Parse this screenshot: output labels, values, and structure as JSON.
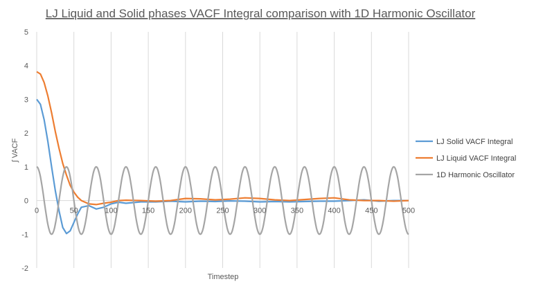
{
  "chart_data": {
    "type": "line",
    "title": "LJ Liquid and Solid phases VACF Integral comparison with 1D Harmonic Oscillator",
    "xlabel": "Timestep",
    "ylabel": "∫ VACF",
    "xlim": [
      0,
      500
    ],
    "ylim": [
      -2,
      5
    ],
    "x_ticks": [
      0,
      50,
      100,
      150,
      200,
      250,
      300,
      350,
      400,
      450,
      500
    ],
    "y_ticks": [
      -2,
      -1,
      0,
      1,
      2,
      3,
      4,
      5
    ],
    "grid": "vertical gridlines",
    "legend_position": "right",
    "series": [
      {
        "name": "LJ Solid VACF Integral",
        "color": "#5b9bd5",
        "x": [
          0,
          5,
          10,
          15,
          20,
          25,
          30,
          35,
          40,
          45,
          50,
          55,
          60,
          70,
          80,
          90,
          100,
          110,
          120,
          140,
          160,
          180,
          200,
          220,
          240,
          260,
          280,
          300,
          320,
          340,
          360,
          380,
          400,
          420,
          440,
          460,
          480,
          500
        ],
        "y": [
          3.0,
          2.85,
          2.4,
          1.75,
          1.0,
          0.3,
          -0.3,
          -0.8,
          -0.98,
          -0.9,
          -0.65,
          -0.4,
          -0.2,
          -0.15,
          -0.25,
          -0.2,
          -0.1,
          -0.05,
          -0.08,
          -0.04,
          -0.04,
          -0.02,
          -0.04,
          -0.02,
          -0.03,
          -0.01,
          -0.02,
          -0.04,
          -0.03,
          -0.04,
          -0.03,
          -0.02,
          -0.02,
          0.0,
          0.02,
          -0.02,
          0.0,
          0.0
        ]
      },
      {
        "name": "LJ Liquid VACF Integral",
        "color": "#ed7d31",
        "x": [
          0,
          5,
          10,
          15,
          20,
          25,
          30,
          35,
          40,
          45,
          50,
          55,
          60,
          70,
          80,
          90,
          100,
          110,
          120,
          140,
          160,
          180,
          200,
          220,
          240,
          260,
          280,
          300,
          320,
          340,
          360,
          380,
          400,
          420,
          440,
          460,
          480,
          500
        ],
        "y": [
          3.82,
          3.75,
          3.5,
          3.1,
          2.6,
          2.05,
          1.55,
          1.1,
          0.75,
          0.45,
          0.25,
          0.1,
          0.0,
          -0.1,
          -0.12,
          -0.08,
          -0.05,
          0.0,
          0.01,
          0.0,
          -0.02,
          0.0,
          0.06,
          0.05,
          0.02,
          0.04,
          0.08,
          0.06,
          0.02,
          0.0,
          0.03,
          0.06,
          0.08,
          0.02,
          0.0,
          0.0,
          -0.02,
          0.0
        ]
      },
      {
        "name": "1D Harmonic Oscillator",
        "color": "#a5a5a5",
        "function": "cos",
        "amplitude": 1,
        "period": 40
      }
    ]
  }
}
